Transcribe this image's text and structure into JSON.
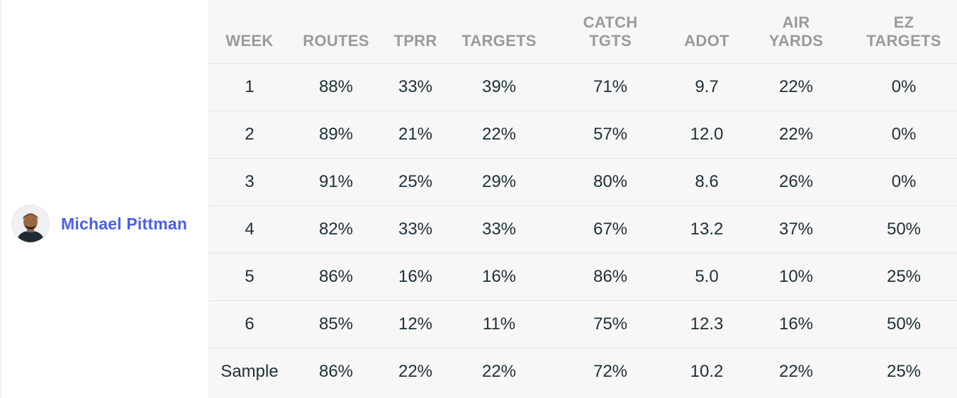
{
  "player": {
    "name": "Michael Pittman"
  },
  "table": {
    "columns": [
      [
        "WEEK"
      ],
      [
        "ROUTES"
      ],
      [
        "TPRR"
      ],
      [
        "TARGETS"
      ],
      [
        "CATCH",
        "TGTS"
      ],
      [
        "ADOT"
      ],
      [
        "AIR",
        "YARDS"
      ],
      [
        "EZ",
        "TARGETS"
      ]
    ],
    "rows": [
      [
        "1",
        "88%",
        "33%",
        "39%",
        "71%",
        "9.7",
        "22%",
        "0%"
      ],
      [
        "2",
        "89%",
        "21%",
        "22%",
        "57%",
        "12.0",
        "22%",
        "0%"
      ],
      [
        "3",
        "91%",
        "25%",
        "29%",
        "80%",
        "8.6",
        "26%",
        "0%"
      ],
      [
        "4",
        "82%",
        "33%",
        "33%",
        "67%",
        "13.2",
        "37%",
        "50%"
      ],
      [
        "5",
        "86%",
        "16%",
        "16%",
        "86%",
        "5.0",
        "10%",
        "25%"
      ],
      [
        "6",
        "85%",
        "12%",
        "11%",
        "75%",
        "12.3",
        "16%",
        "50%"
      ],
      [
        "Sample",
        "86%",
        "22%",
        "22%",
        "72%",
        "10.2",
        "22%",
        "25%"
      ]
    ]
  },
  "colors": {
    "player_name": "#4a5fe8",
    "header_text": "#999a9c",
    "cell_text": "#1f2f38",
    "table_bg": "#f7f7f7"
  }
}
